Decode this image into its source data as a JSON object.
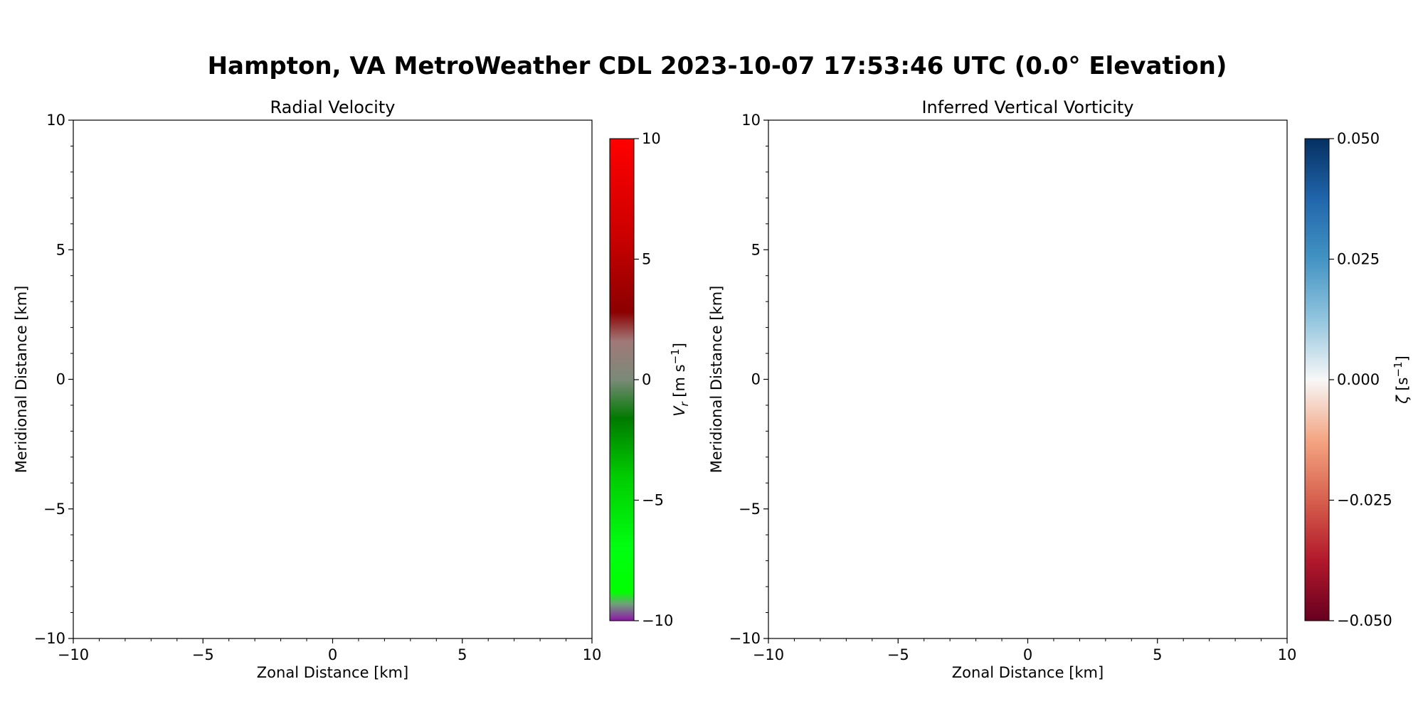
{
  "figure": {
    "suptitle": "Hampton, VA MetroWeather CDL 2023-10-07 17:53:46 UTC (0.0° Elevation)"
  },
  "chart_data": [
    {
      "type": "heatmap",
      "title": "Radial Velocity",
      "xlabel": "Zonal Distance [km]",
      "ylabel": "Meridional Distance [km]",
      "xlim": [
        -10,
        10
      ],
      "ylim": [
        -10,
        10
      ],
      "xticks": [
        -10,
        -5,
        0,
        5,
        10
      ],
      "yticks": [
        -10,
        -5,
        0,
        5,
        10
      ],
      "xtick_labels": [
        "−10",
        "−5",
        "0",
        "5",
        "10"
      ],
      "ytick_labels": [
        "−10",
        "−5",
        "0",
        "5",
        "10"
      ],
      "grid": false,
      "data": [],
      "colorbar": {
        "label_prefix": "V",
        "label_sub": "r",
        "label_unit": " [m s",
        "label_exp": "−1",
        "label_close": "]",
        "range": [
          -10,
          10
        ],
        "ticks": [
          -10,
          -5,
          0,
          5,
          10
        ],
        "tick_labels": [
          "−10",
          "−5",
          "0",
          "5",
          "10"
        ],
        "colormap": [
          [
            0.0,
            "#8e15a8"
          ],
          [
            0.035,
            "#6fa27a"
          ],
          [
            0.06,
            "#00ff00"
          ],
          [
            0.15,
            "#00ff10"
          ],
          [
            0.3,
            "#01cc01"
          ],
          [
            0.42,
            "#007a00"
          ],
          [
            0.5,
            "#7a8a78"
          ],
          [
            0.58,
            "#a07878"
          ],
          [
            0.64,
            "#8b0000"
          ],
          [
            0.8,
            "#cc0000"
          ],
          [
            1.0,
            "#ff0000"
          ]
        ]
      }
    },
    {
      "type": "heatmap",
      "title": "Inferred Vertical Vorticity",
      "xlabel": "Zonal Distance [km]",
      "ylabel": "Meridional Distance [km]",
      "xlim": [
        -10,
        10
      ],
      "ylim": [
        -10,
        10
      ],
      "xticks": [
        -10,
        -5,
        0,
        5,
        10
      ],
      "yticks": [
        -10,
        -5,
        0,
        5,
        10
      ],
      "xtick_labels": [
        "−10",
        "−5",
        "0",
        "5",
        "10"
      ],
      "ytick_labels": [
        "−10",
        "−5",
        "0",
        "5",
        "10"
      ],
      "grid": false,
      "data": [],
      "colorbar": {
        "label_prefix": "ζ",
        "label_sub": "",
        "label_unit": " [s",
        "label_exp": "−1",
        "label_close": "]",
        "range": [
          -0.05,
          0.05
        ],
        "ticks": [
          -0.05,
          -0.025,
          0,
          0.025,
          0.05
        ],
        "tick_labels": [
          "−0.050",
          "−0.025",
          "0.000",
          "0.025",
          "0.050"
        ],
        "colormap": [
          [
            0.0,
            "#67001f"
          ],
          [
            0.125,
            "#b2182b"
          ],
          [
            0.25,
            "#d6604d"
          ],
          [
            0.375,
            "#f4a582"
          ],
          [
            0.5,
            "#f7f7f7"
          ],
          [
            0.625,
            "#92c5de"
          ],
          [
            0.75,
            "#4393c3"
          ],
          [
            0.875,
            "#2166ac"
          ],
          [
            1.0,
            "#053061"
          ]
        ]
      }
    }
  ]
}
